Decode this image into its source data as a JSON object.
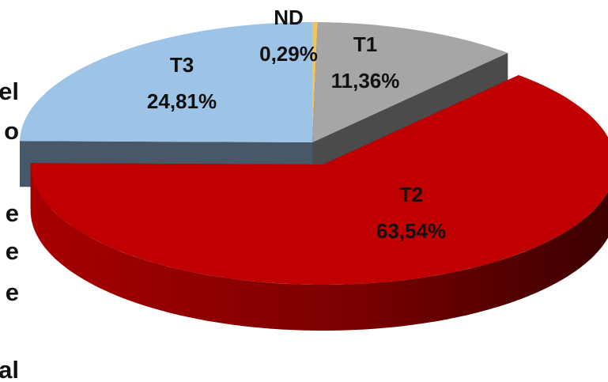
{
  "chart_data": {
    "type": "pie3d",
    "categories": [
      "ND",
      "T1",
      "T2",
      "T3"
    ],
    "values": [
      0.29,
      11.36,
      63.54,
      24.81
    ],
    "value_labels": [
      "0,29%",
      "11,36%",
      "63,54%",
      "24,81%"
    ],
    "colors": [
      "#f2c45e",
      "#a6a6a6",
      "#c00000",
      "#9dc3e6"
    ],
    "exploded": "T2"
  },
  "edge_text": [
    "el",
    "o",
    "e",
    "e",
    "e",
    "al"
  ]
}
